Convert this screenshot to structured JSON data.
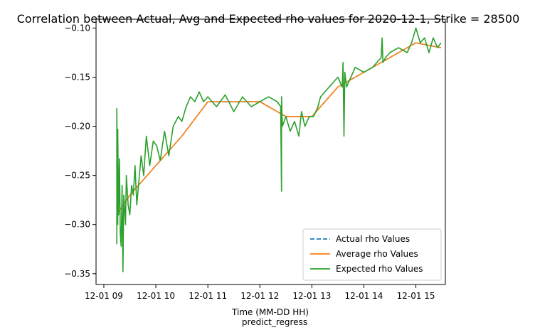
{
  "chart_data": {
    "type": "line",
    "title": "Correlation between Actual, Avg and Expected rho values for 2020-12-1, Strike = 28500",
    "xlabel": "Time (MM-DD HH)",
    "xlabel2": "predict_regress",
    "ylabel": "",
    "x_tick_labels": [
      "12-01 09",
      "12-01 10",
      "12-01 11",
      "12-01 12",
      "12-01 13",
      "12-01 14",
      "12-01 15"
    ],
    "x_ticks": [
      "2020-12-01 09:00",
      "2020-12-01 10:00",
      "2020-12-01 11:00",
      "2020-12-01 12:00",
      "2020-12-01 13:00",
      "2020-12-01 14:00",
      "2020-12-01 15:00"
    ],
    "xlim": [
      "2020-12-01 08:51",
      "2020-12-01 15:34"
    ],
    "y_ticks": [
      -0.35,
      -0.3,
      -0.25,
      -0.2,
      -0.15,
      -0.1
    ],
    "y_tick_labels": [
      "−0.35",
      "−0.30",
      "−0.25",
      "−0.20",
      "−0.15",
      "−0.10"
    ],
    "ylim": [
      -0.361,
      -0.091
    ],
    "grid": false,
    "legend_position": "lower-right",
    "series": [
      {
        "name": "Actual rho Values",
        "color": "#1f77b4",
        "dash": true,
        "x": [
          "2020-12-01 09:15",
          "2020-12-01 09:30",
          "2020-12-01 10:00",
          "2020-12-01 10:30",
          "2020-12-01 11:00",
          "2020-12-01 11:30",
          "2020-12-01 12:00",
          "2020-12-01 12:30",
          "2020-12-01 13:00",
          "2020-12-01 13:30",
          "2020-12-01 14:00",
          "2020-12-01 14:30",
          "2020-12-01 15:00",
          "2020-12-01 15:29"
        ],
        "y": [
          -0.29,
          -0.27,
          -0.24,
          -0.21,
          -0.175,
          -0.175,
          -0.175,
          -0.19,
          -0.19,
          -0.16,
          -0.145,
          -0.13,
          -0.115,
          -0.12
        ]
      },
      {
        "name": "Average rho Values",
        "color": "#ff7f0e",
        "dash": false,
        "x": [
          "2020-12-01 09:15",
          "2020-12-01 09:30",
          "2020-12-01 10:00",
          "2020-12-01 10:30",
          "2020-12-01 11:00",
          "2020-12-01 11:30",
          "2020-12-01 12:00",
          "2020-12-01 12:30",
          "2020-12-01 13:00",
          "2020-12-01 13:30",
          "2020-12-01 14:00",
          "2020-12-01 14:30",
          "2020-12-01 15:00",
          "2020-12-01 15:29"
        ],
        "y": [
          -0.29,
          -0.27,
          -0.24,
          -0.21,
          -0.175,
          -0.175,
          -0.175,
          -0.19,
          -0.19,
          -0.16,
          -0.145,
          -0.13,
          -0.115,
          -0.12
        ]
      },
      {
        "name": "Expected rho Values",
        "color": "#2ca02c",
        "dash": false,
        "x": [
          "2020-12-01 09:15",
          "2020-12-01 09:15",
          "2020-12-01 09:16",
          "2020-12-01 09:16",
          "2020-12-01 09:17",
          "2020-12-01 09:18",
          "2020-12-01 09:19",
          "2020-12-01 09:20",
          "2020-12-01 09:21",
          "2020-12-01 09:22",
          "2020-12-01 09:23",
          "2020-12-01 09:25",
          "2020-12-01 09:26",
          "2020-12-01 09:28",
          "2020-12-01 09:30",
          "2020-12-01 09:32",
          "2020-12-01 09:34",
          "2020-12-01 09:36",
          "2020-12-01 09:38",
          "2020-12-01 09:40",
          "2020-12-01 09:43",
          "2020-12-01 09:46",
          "2020-12-01 09:49",
          "2020-12-01 09:53",
          "2020-12-01 09:57",
          "2020-12-01 10:01",
          "2020-12-01 10:05",
          "2020-12-01 10:10",
          "2020-12-01 10:15",
          "2020-12-01 10:20",
          "2020-12-01 10:26",
          "2020-12-01 10:30",
          "2020-12-01 10:35",
          "2020-12-01 10:40",
          "2020-12-01 10:45",
          "2020-12-01 10:50",
          "2020-12-01 10:55",
          "2020-12-01 11:00",
          "2020-12-01 11:10",
          "2020-12-01 11:20",
          "2020-12-01 11:30",
          "2020-12-01 11:40",
          "2020-12-01 11:50",
          "2020-12-01 12:00",
          "2020-12-01 12:10",
          "2020-12-01 12:20",
          "2020-12-01 12:24",
          "2020-12-01 12:25",
          "2020-12-01 12:25",
          "2020-12-01 12:26",
          "2020-12-01 12:30",
          "2020-12-01 12:35",
          "2020-12-01 12:40",
          "2020-12-01 12:45",
          "2020-12-01 12:48",
          "2020-12-01 12:52",
          "2020-12-01 12:57",
          "2020-12-01 13:02",
          "2020-12-01 13:07",
          "2020-12-01 13:10",
          "2020-12-01 13:15",
          "2020-12-01 13:20",
          "2020-12-01 13:25",
          "2020-12-01 13:30",
          "2020-12-01 13:35",
          "2020-12-01 13:36",
          "2020-12-01 13:37",
          "2020-12-01 13:38",
          "2020-12-01 13:40",
          "2020-12-01 13:45",
          "2020-12-01 13:50",
          "2020-12-01 14:00",
          "2020-12-01 14:10",
          "2020-12-01 14:20",
          "2020-12-01 14:21",
          "2020-12-01 14:22",
          "2020-12-01 14:25",
          "2020-12-01 14:30",
          "2020-12-01 14:40",
          "2020-12-01 14:50",
          "2020-12-01 14:55",
          "2020-12-01 15:00",
          "2020-12-01 15:05",
          "2020-12-01 15:10",
          "2020-12-01 15:15",
          "2020-12-01 15:20",
          "2020-12-01 15:25",
          "2020-12-01 15:29"
        ],
        "y": [
          -0.32,
          -0.182,
          -0.3,
          -0.203,
          -0.29,
          -0.233,
          -0.31,
          -0.322,
          -0.26,
          -0.348,
          -0.27,
          -0.3,
          -0.25,
          -0.28,
          -0.29,
          -0.26,
          -0.27,
          -0.24,
          -0.28,
          -0.26,
          -0.23,
          -0.25,
          -0.21,
          -0.24,
          -0.215,
          -0.22,
          -0.235,
          -0.205,
          -0.23,
          -0.2,
          -0.19,
          -0.195,
          -0.18,
          -0.17,
          -0.175,
          -0.165,
          -0.175,
          -0.17,
          -0.18,
          -0.168,
          -0.185,
          -0.17,
          -0.18,
          -0.175,
          -0.17,
          -0.175,
          -0.18,
          -0.266,
          -0.17,
          -0.2,
          -0.19,
          -0.205,
          -0.195,
          -0.21,
          -0.185,
          -0.2,
          -0.19,
          -0.19,
          -0.18,
          -0.17,
          -0.165,
          -0.16,
          -0.155,
          -0.15,
          -0.16,
          -0.135,
          -0.21,
          -0.145,
          -0.16,
          -0.15,
          -0.14,
          -0.145,
          -0.14,
          -0.13,
          -0.11,
          -0.135,
          -0.13,
          -0.125,
          -0.12,
          -0.125,
          -0.115,
          -0.1,
          -0.115,
          -0.11,
          -0.125,
          -0.11,
          -0.12,
          -0.115
        ]
      }
    ]
  }
}
